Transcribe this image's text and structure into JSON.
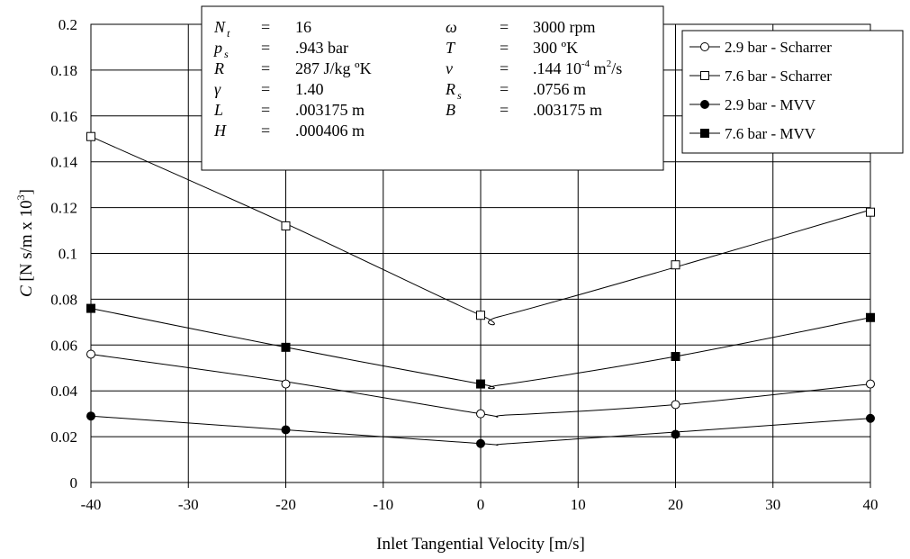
{
  "chart_data": {
    "type": "line",
    "xlabel": "Inlet Tangential Velocity [m/s]",
    "ylabel_symbol": "C",
    "ylabel_units": "[N s/m x 10",
    "ylabel_exp": "3",
    "ylabel_close": "]",
    "xlim": [
      -40,
      40
    ],
    "ylim": [
      0,
      0.2
    ],
    "x_ticks": [
      "-40",
      "-30",
      "-20",
      "-10",
      "0",
      "10",
      "20",
      "30",
      "40"
    ],
    "y_ticks": [
      "0",
      "0.02",
      "0.04",
      "0.06",
      "0.08",
      "0.1",
      "0.12",
      "0.14",
      "0.16",
      "0.18",
      "0.2"
    ],
    "grid": true,
    "legend_position": "top-right",
    "x": [
      -40,
      -20,
      0,
      20,
      40
    ],
    "series": [
      {
        "name": "2.9 bar - Scharrer",
        "marker": "open-circle",
        "values": [
          0.056,
          0.043,
          0.03,
          0.034,
          0.043
        ]
      },
      {
        "name": "7.6 bar - Scharrer",
        "marker": "open-square",
        "values": [
          0.151,
          0.112,
          0.073,
          0.095,
          0.118
        ]
      },
      {
        "name": "2.9 bar - MVV",
        "marker": "filled-circle",
        "values": [
          0.029,
          0.023,
          0.017,
          0.021,
          0.028
        ]
      },
      {
        "name": "7.6 bar -  MVV",
        "marker": "filled-square",
        "values": [
          0.076,
          0.059,
          0.043,
          0.055,
          0.072
        ]
      }
    ],
    "curves": [
      [
        [
          -40,
          0.056
        ],
        [
          -20,
          0.044
        ],
        [
          0,
          0.03
        ],
        [
          3,
          0.0295
        ],
        [
          20,
          0.034
        ],
        [
          40,
          0.043
        ]
      ],
      [
        [
          -40,
          0.151
        ],
        [
          -20,
          0.113
        ],
        [
          0,
          0.073
        ],
        [
          2,
          0.0725
        ],
        [
          20,
          0.094
        ],
        [
          40,
          0.119
        ]
      ],
      [
        [
          -40,
          0.029
        ],
        [
          -20,
          0.023
        ],
        [
          0,
          0.017
        ],
        [
          3,
          0.017
        ],
        [
          20,
          0.022
        ],
        [
          40,
          0.028
        ]
      ],
      [
        [
          -40,
          0.076
        ],
        [
          -20,
          0.059
        ],
        [
          0,
          0.043
        ],
        [
          2,
          0.0425
        ],
        [
          20,
          0.055
        ],
        [
          40,
          0.072
        ]
      ]
    ],
    "parameters": [
      {
        "sym": "N",
        "sub": "t",
        "val": "16"
      },
      {
        "sym": "p",
        "sub": "s",
        "val": ".943 bar"
      },
      {
        "sym": "R",
        "sub": "",
        "val": "287 J/kg ºK"
      },
      {
        "sym": "γ",
        "sub": "",
        "val": "1.40"
      },
      {
        "sym": "L",
        "sub": "",
        "val": ".003175 m"
      },
      {
        "sym": "H",
        "sub": "",
        "val": ".000406 m"
      },
      {
        "sym": "ω",
        "sub": "",
        "val": "3000 rpm"
      },
      {
        "sym": "T",
        "sub": "",
        "val": "300 ºK"
      },
      {
        "sym": "ν",
        "sub": "",
        "val": ".144 10",
        "sup": "-4",
        "val2": " m",
        "sup2": "2",
        "val3": "/s"
      },
      {
        "sym": "R",
        "sub": "s",
        "val": ".0756 m"
      },
      {
        "sym": "B",
        "sub": "",
        "val": ".003175 m"
      }
    ],
    "equals": "="
  }
}
